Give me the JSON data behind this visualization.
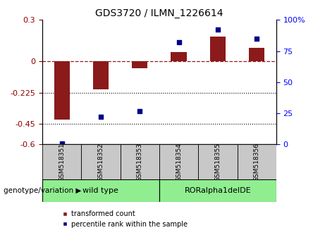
{
  "title": "GDS3720 / ILMN_1226614",
  "samples": [
    "GSM518351",
    "GSM518352",
    "GSM518353",
    "GSM518354",
    "GSM518355",
    "GSM518356"
  ],
  "red_values": [
    -0.42,
    -0.2,
    -0.05,
    0.07,
    0.18,
    0.1
  ],
  "blue_values": [
    1,
    22,
    27,
    82,
    92,
    85
  ],
  "ylim_left": [
    -0.6,
    0.3
  ],
  "ylim_right": [
    0,
    100
  ],
  "yticks_left": [
    0.3,
    0,
    -0.225,
    -0.45,
    -0.6
  ],
  "yticks_right": [
    100,
    75,
    50,
    25,
    0
  ],
  "hline_dots": [
    -0.225,
    -0.45
  ],
  "group_label": "genotype/variation",
  "legend_red": "transformed count",
  "legend_blue": "percentile rank within the sample",
  "bar_color": "#8B1a1a",
  "dot_color": "#00008B",
  "background_color": "#ffffff",
  "bar_width": 0.4,
  "group1_label": "wild type",
  "group2_label": "RORalpha1delDE",
  "group_color": "#90EE90",
  "sample_box_color": "#c8c8c8",
  "title_fontsize": 10,
  "tick_fontsize": 8
}
